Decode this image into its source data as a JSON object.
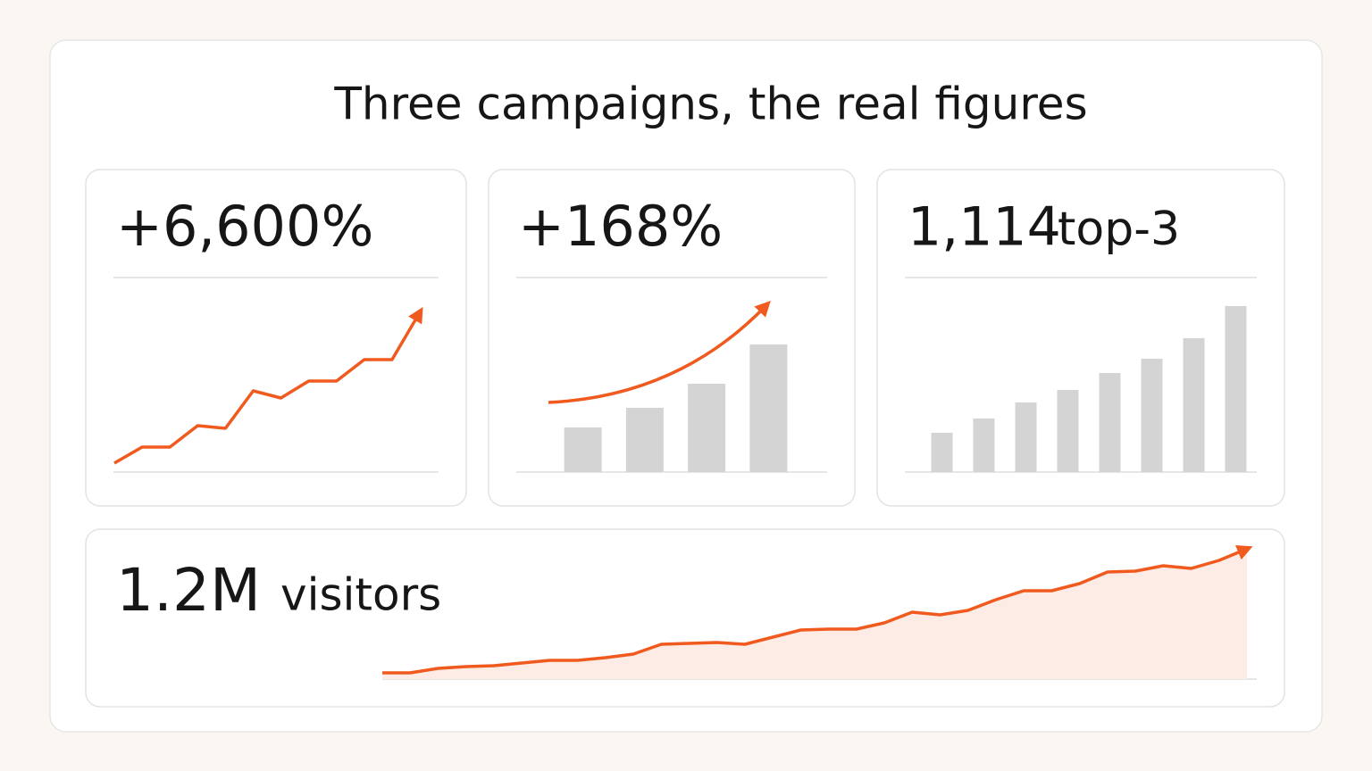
{
  "title": "Three campaigns, the real figures",
  "chart_data": [
    {
      "type": "line",
      "title": "+6,600%",
      "color": "#f05a1e",
      "ylim": [
        0,
        200
      ],
      "values": [
        10,
        28,
        28,
        52,
        49,
        91,
        83,
        102,
        102,
        126,
        126,
        179
      ]
    },
    {
      "type": "bar",
      "title": "+168%",
      "color": "#d4d4d4",
      "ylim": [
        0,
        200
      ],
      "values": [
        50,
        72,
        99,
        143
      ]
    },
    {
      "type": "bar",
      "title": "1,114",
      "subtitle": "top-3",
      "color": "#d4d4d4",
      "ylim": [
        0,
        200
      ],
      "values": [
        44,
        60,
        78,
        92,
        111,
        127,
        150,
        186
      ]
    },
    {
      "type": "area",
      "title": "1.2M",
      "subtitle": "visitors",
      "color": "#f05a1e",
      "ylim": [
        0,
        160
      ],
      "values": [
        7,
        7,
        12,
        14,
        15,
        18,
        21,
        21,
        24,
        28,
        39,
        40,
        41,
        39,
        47,
        55,
        56,
        56,
        63,
        75,
        72,
        77,
        89,
        99,
        99,
        107,
        120,
        121,
        127,
        124,
        133,
        146
      ]
    }
  ]
}
